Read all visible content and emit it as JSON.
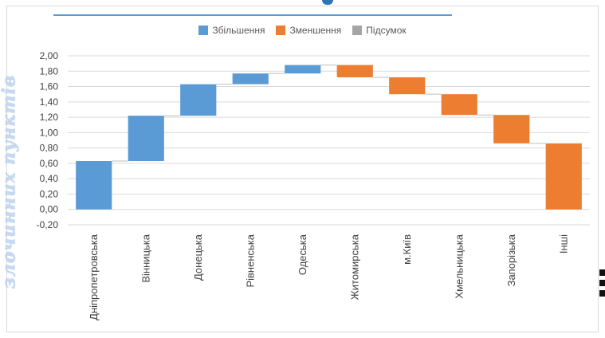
{
  "side_caption": "злочинних пунктів",
  "colors": {
    "increase": "#5b9bd5",
    "decrease": "#ed7d31",
    "total": "#a5a5a5",
    "grid": "#d9d9d9",
    "top_rule": "#5b9bd5"
  },
  "legend": {
    "increase": "Збільшення",
    "decrease": "Зменшення",
    "total": "Підсумок"
  },
  "chart_data": {
    "type": "bar",
    "subtype": "waterfall",
    "title": "",
    "xlabel": "",
    "ylabel": "",
    "ylim": [
      -0.2,
      2.0
    ],
    "yticks": [
      "2,00",
      "1,80",
      "1,60",
      "1,40",
      "1,20",
      "1,00",
      "0,80",
      "0,60",
      "0,40",
      "0,20",
      "0,00",
      "-0,20"
    ],
    "ytick_values": [
      2.0,
      1.8,
      1.6,
      1.4,
      1.2,
      1.0,
      0.8,
      0.6,
      0.4,
      0.2,
      0.0,
      -0.2
    ],
    "grid": true,
    "legend_position": "top",
    "categories": [
      "Дніпропетровська",
      "Вінницька",
      "Донецька",
      "Рівненська",
      "Одеська",
      "Житомирська",
      "м.Київ",
      "Хмельницька",
      "Запорізька",
      "Інші"
    ],
    "series": [
      {
        "name": "Збільшення",
        "values": [
          0.63,
          0.59,
          0.41,
          0.14,
          0.11,
          0,
          0,
          0,
          0,
          0
        ]
      },
      {
        "name": "Зменшення",
        "values": [
          0,
          0,
          0,
          0,
          0,
          0.16,
          0.22,
          0.27,
          0.37,
          0.87
        ]
      }
    ],
    "bars": [
      {
        "start": 0.0,
        "end": 0.63,
        "kind": "increase"
      },
      {
        "start": 0.63,
        "end": 1.22,
        "kind": "increase"
      },
      {
        "start": 1.22,
        "end": 1.63,
        "kind": "increase"
      },
      {
        "start": 1.63,
        "end": 1.77,
        "kind": "increase"
      },
      {
        "start": 1.77,
        "end": 1.88,
        "kind": "increase"
      },
      {
        "start": 1.88,
        "end": 1.72,
        "kind": "decrease"
      },
      {
        "start": 1.72,
        "end": 1.5,
        "kind": "decrease"
      },
      {
        "start": 1.5,
        "end": 1.23,
        "kind": "decrease"
      },
      {
        "start": 1.23,
        "end": 0.86,
        "kind": "decrease"
      },
      {
        "start": 0.86,
        "end": 0.0,
        "kind": "decrease"
      }
    ]
  }
}
